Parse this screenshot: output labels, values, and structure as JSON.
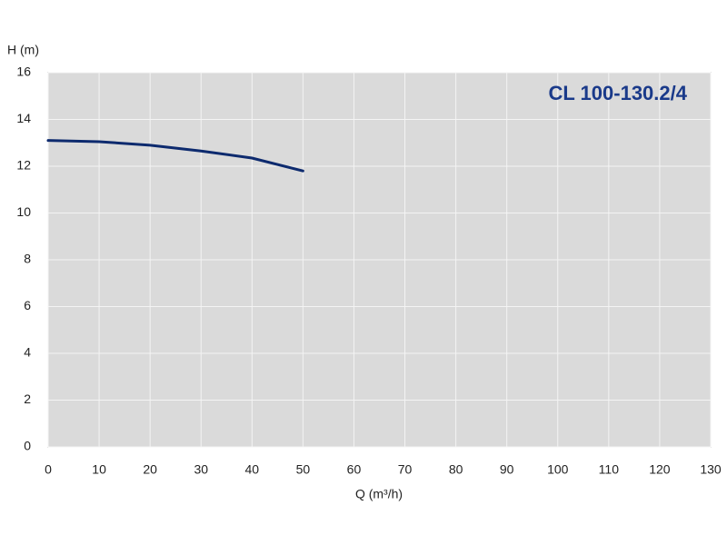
{
  "chart_data": {
    "type": "line",
    "title": "CL 100-130.2/4",
    "x_label": "Q (m³/h)",
    "y_label": "H (m)",
    "x": [
      0,
      10,
      20,
      30,
      40,
      50
    ],
    "series": [
      {
        "color": "#0d2a6e",
        "values": [
          13.1,
          13.05,
          12.9,
          12.65,
          12.35,
          11.8
        ]
      }
    ],
    "xlim": [
      0,
      130
    ],
    "xticks": [
      0,
      10,
      20,
      30,
      40,
      50,
      60,
      70,
      80,
      90,
      100,
      110,
      120,
      130
    ],
    "ylim": [
      0,
      16
    ],
    "yticks": [
      0,
      2,
      4,
      6,
      8,
      10,
      12,
      14,
      16
    ],
    "grid": true
  }
}
